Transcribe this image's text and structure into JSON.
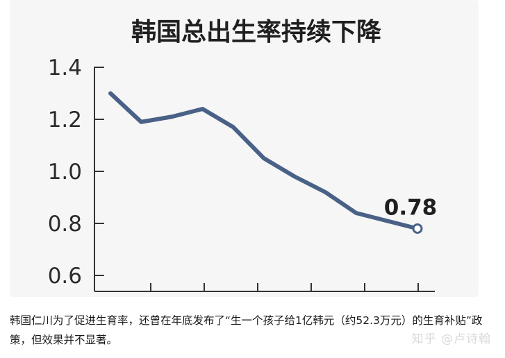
{
  "chart_data": {
    "type": "line",
    "title": "韩国总出生率持续下降",
    "y_ticks": [
      "1.4",
      "1.2",
      "1.0",
      "0.8",
      "0.6"
    ],
    "ylim": [
      0.6,
      1.4
    ],
    "values": [
      1.3,
      1.19,
      1.21,
      1.24,
      1.17,
      1.05,
      0.98,
      0.92,
      0.84,
      0.81,
      0.78
    ],
    "end_label": "0.78",
    "grid": false,
    "line_color": "#4a6187"
  },
  "caption": "韩国仁川为了促进生育率，还曾在年底发布了“生一个孩子给1亿韩元（约52.3万元）的生育补贴”政策，但效果并不显著。",
  "watermark": "知乎 @卢诗翰"
}
